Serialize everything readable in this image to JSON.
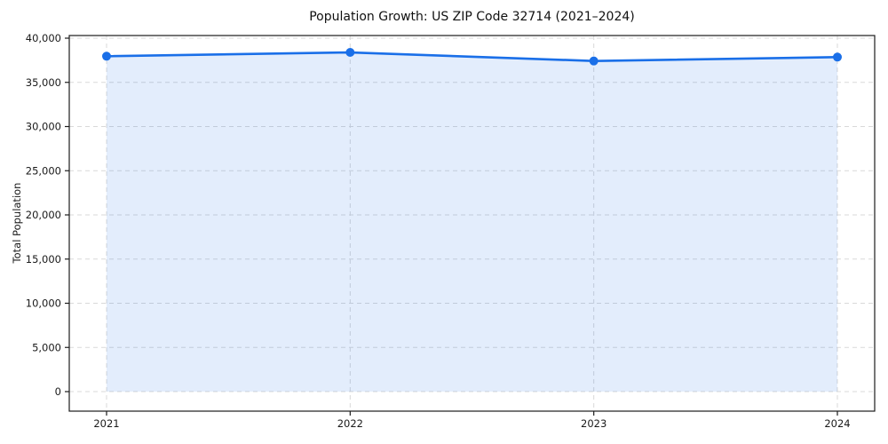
{
  "chart_data": {
    "type": "area",
    "title": "Population Growth: US ZIP Code 32714 (2021–2024)",
    "xlabel": "",
    "ylabel": "Total Population",
    "categories": [
      "2021",
      "2022",
      "2023",
      "2024"
    ],
    "series": [
      {
        "name": "Total Population",
        "values": [
          37960,
          38390,
          37420,
          37860
        ]
      }
    ],
    "ylim": [
      0,
      40000
    ],
    "yticks": [
      0,
      5000,
      10000,
      15000,
      20000,
      25000,
      30000,
      35000,
      40000
    ],
    "ytick_labels": [
      "0",
      "5,000",
      "10,000",
      "15,000",
      "20,000",
      "25,000",
      "30,000",
      "35,000",
      "40,000"
    ],
    "grid": true,
    "grid_style": "dashed",
    "legend": "none",
    "colors": {
      "line": "#1a6fe8",
      "marker": "#1a6fe8",
      "fill": "rgba(26,111,232,0.12)",
      "grid": "#d9d9d9",
      "spine": "#1c1c1c",
      "text": "#1a1a1a"
    }
  }
}
